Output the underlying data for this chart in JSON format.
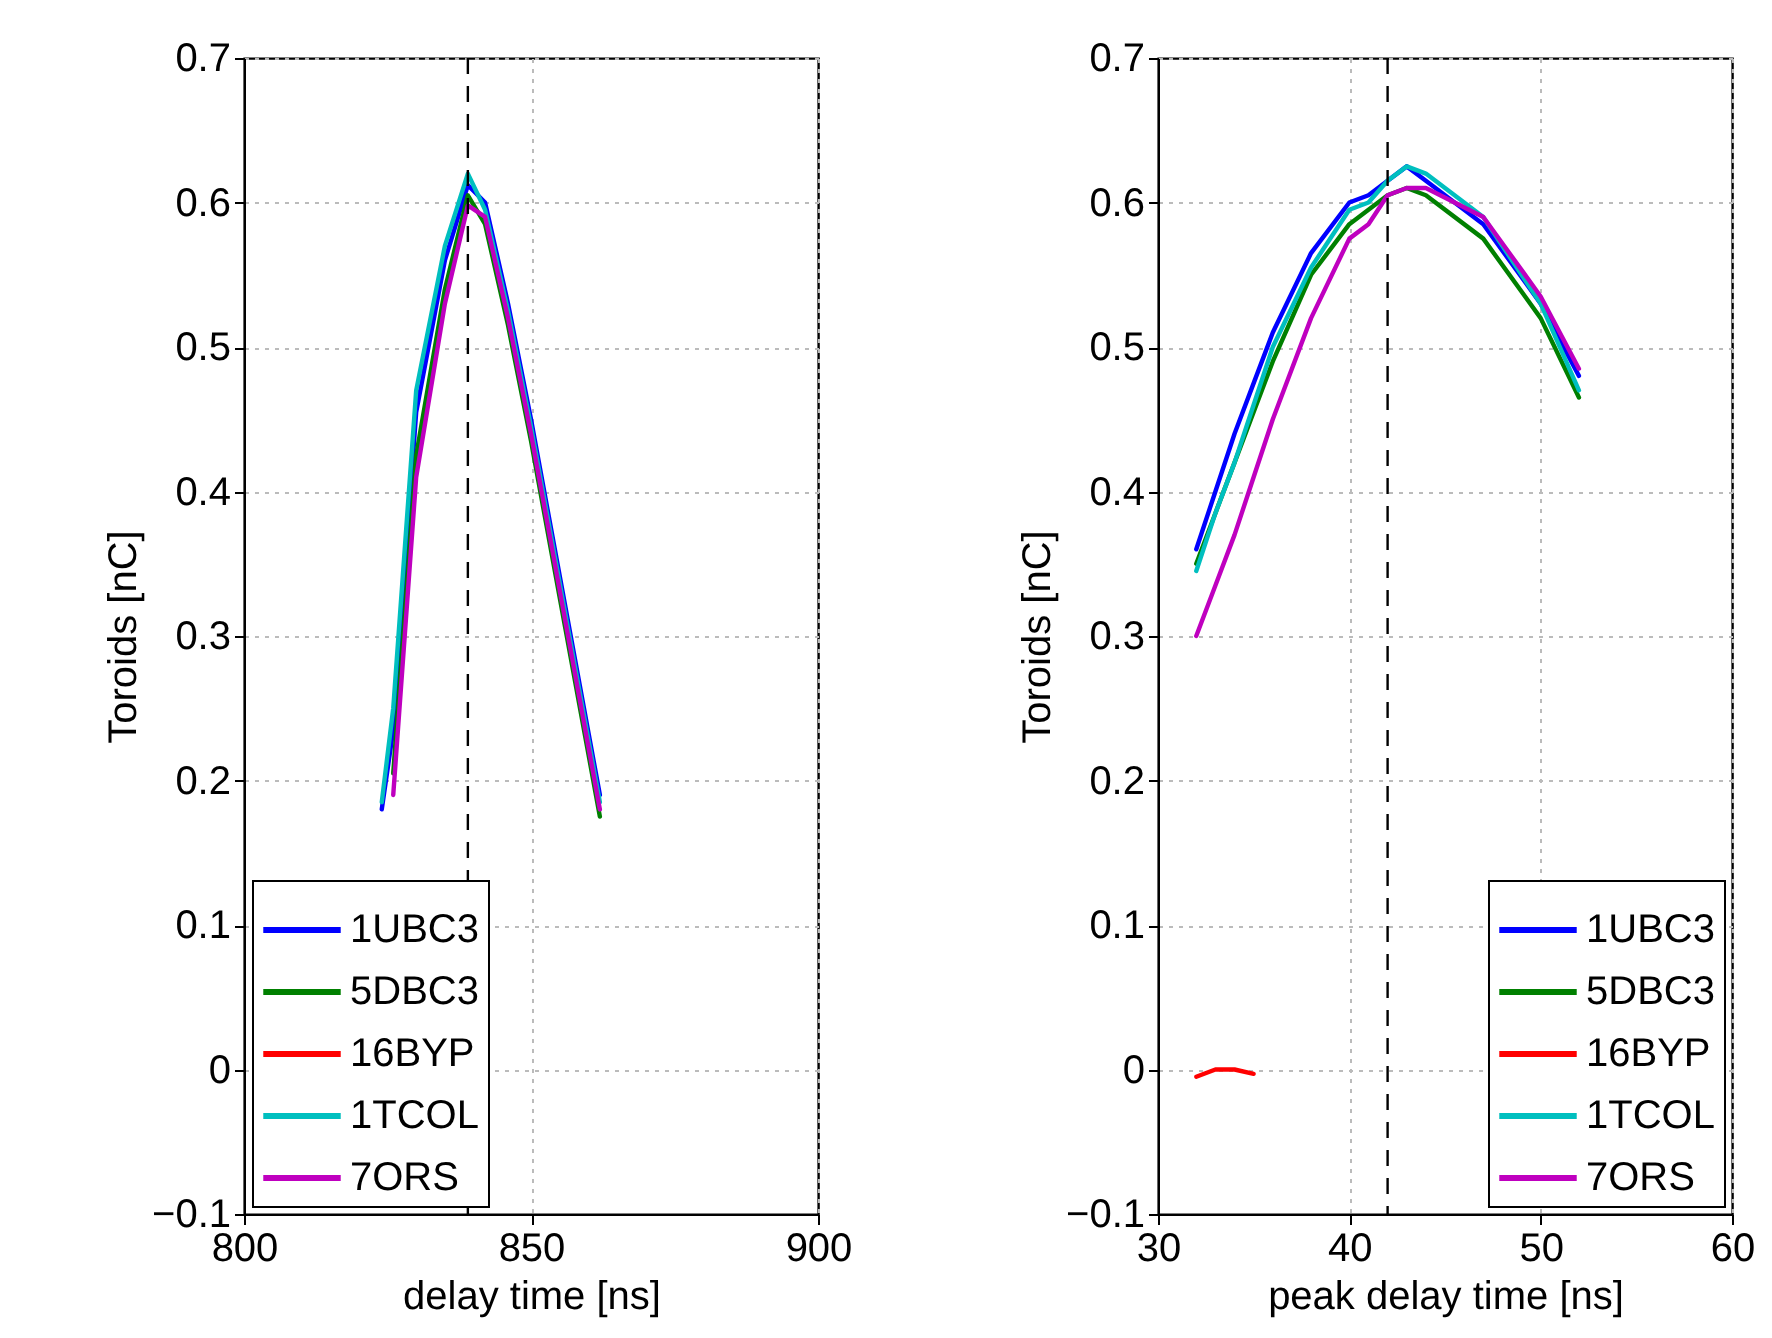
{
  "chart_data": [
    {
      "type": "line",
      "xlabel": "delay time [ns]",
      "ylabel": "Toroids [nC]",
      "x": [
        824,
        826,
        830,
        835,
        839,
        842,
        846,
        850,
        856,
        862
      ],
      "series": [
        {
          "name": "1UBC3",
          "color": "#0000ff",
          "values": [
            0.18,
            0.235,
            0.455,
            0.56,
            0.612,
            0.6,
            0.53,
            0.45,
            0.32,
            0.19
          ]
        },
        {
          "name": "5DBC3",
          "color": "#008000",
          "values": [
            null,
            0.205,
            0.425,
            0.54,
            0.605,
            0.585,
            0.515,
            0.435,
            0.305,
            0.175
          ]
        },
        {
          "name": "16BYP",
          "color": "#ff0000",
          "values": [
            null,
            null,
            null,
            null,
            null,
            null,
            null,
            null,
            null,
            null
          ]
        },
        {
          "name": "1TCOL",
          "color": "#00bfbf",
          "values": [
            0.185,
            0.25,
            0.47,
            0.57,
            0.62,
            0.595,
            0.525,
            0.445,
            0.315,
            0.185
          ]
        },
        {
          "name": "7ORS",
          "color": "#bf00bf",
          "values": [
            null,
            0.19,
            0.41,
            0.53,
            0.598,
            0.59,
            0.52,
            0.44,
            0.31,
            0.18
          ]
        }
      ],
      "xlim": [
        800,
        900
      ],
      "xticks": [
        800,
        850,
        900
      ],
      "ylim": [
        -0.1,
        0.7
      ],
      "yticks": [
        -0.1,
        0,
        0.1,
        0.2,
        0.3,
        0.4,
        0.5,
        0.6,
        0.7
      ],
      "grid": true,
      "legend": "bottom left",
      "line_style": "solid",
      "ref_lines": [
        {
          "axis": "x",
          "value": 839,
          "color": "#000000",
          "line_style": "dashed"
        }
      ]
    },
    {
      "type": "line",
      "xlabel": "peak delay time [ns]",
      "ylabel": "Toroids [nC]",
      "x": [
        32,
        33,
        34,
        35,
        36,
        38,
        40,
        41,
        42,
        43,
        44,
        47,
        50,
        52
      ],
      "series": [
        {
          "name": "1UBC3",
          "color": "#0000ff",
          "values": [
            0.36,
            0.4,
            0.44,
            0.475,
            0.51,
            0.565,
            0.6,
            0.605,
            0.615,
            0.625,
            0.615,
            0.585,
            0.53,
            0.48
          ]
        },
        {
          "name": "5DBC3",
          "color": "#008000",
          "values": [
            0.35,
            0.385,
            0.42,
            0.455,
            0.49,
            0.55,
            0.585,
            0.595,
            0.605,
            0.61,
            0.605,
            0.575,
            0.52,
            0.465
          ]
        },
        {
          "name": "16BYP",
          "color": "#ff0000",
          "values": [
            -0.005,
            0,
            0,
            -0.003,
            null,
            null,
            null,
            null,
            null,
            null,
            null,
            null,
            null,
            null
          ]
        },
        {
          "name": "1TCOL",
          "color": "#00bfbf",
          "values": [
            0.345,
            0.385,
            0.42,
            0.46,
            0.5,
            0.555,
            0.595,
            0.6,
            0.615,
            0.625,
            0.62,
            0.59,
            0.53,
            0.47
          ]
        },
        {
          "name": "7ORS",
          "color": "#bf00bf",
          "values": [
            0.3,
            0.335,
            0.37,
            0.41,
            0.45,
            0.52,
            0.575,
            0.585,
            0.605,
            0.61,
            0.61,
            0.59,
            0.535,
            0.485
          ]
        }
      ],
      "xlim": [
        30,
        60
      ],
      "xticks": [
        30,
        40,
        50,
        60
      ],
      "ylim": [
        -0.1,
        0.7
      ],
      "yticks": [
        -0.1,
        0,
        0.1,
        0.2,
        0.3,
        0.4,
        0.5,
        0.6,
        0.7
      ],
      "grid": true,
      "legend": "bottom right",
      "line_style": "solid",
      "ref_lines": [
        {
          "axis": "x",
          "value": 42,
          "color": "#000000",
          "line_style": "dashed"
        }
      ]
    }
  ]
}
